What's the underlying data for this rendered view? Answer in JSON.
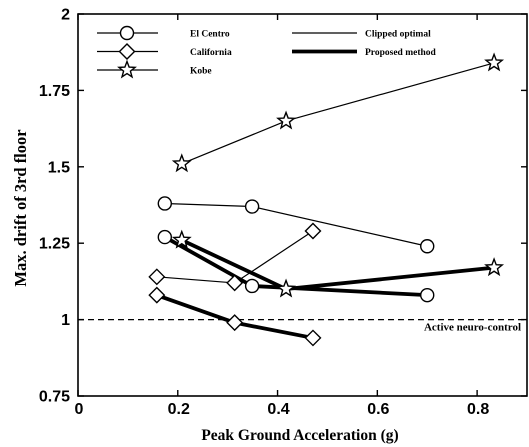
{
  "chart_data": {
    "type": "line",
    "xlabel": "Peak Ground Acceleration (g)",
    "ylabel": "Max. drift of 3rd floor",
    "xlim": [
      0,
      0.9
    ],
    "ylim": [
      0.75,
      2
    ],
    "xticks": [
      0,
      0.2,
      0.4,
      0.6,
      0.8
    ],
    "yticks": [
      0.75,
      1,
      1.25,
      1.5,
      1.75,
      2
    ],
    "grid": false,
    "legend": {
      "placement": "top-left",
      "marker_entries": [
        {
          "label": "El Centro",
          "marker": "circle"
        },
        {
          "label": "California",
          "marker": "diamond"
        },
        {
          "label": "Kobe",
          "marker": "star"
        }
      ],
      "line_entries": [
        {
          "label": "Clipped optimal",
          "line": "thin"
        },
        {
          "label": "Proposed method",
          "line": "thick"
        }
      ]
    },
    "reference_line": {
      "y": 1,
      "style": "dashed",
      "label": "Active neuro-control"
    },
    "series": [
      {
        "marker_entry": 0,
        "line_entry": 0,
        "x": [
          0.174,
          0.349,
          0.7
        ],
        "y": [
          1.38,
          1.37,
          1.24
        ]
      },
      {
        "marker_entry": 0,
        "line_entry": 1,
        "x": [
          0.174,
          0.349,
          0.7
        ],
        "y": [
          1.27,
          1.11,
          1.08
        ]
      },
      {
        "marker_entry": 1,
        "line_entry": 0,
        "x": [
          0.158,
          0.314,
          0.471
        ],
        "y": [
          1.14,
          1.12,
          1.29
        ]
      },
      {
        "marker_entry": 1,
        "line_entry": 1,
        "x": [
          0.158,
          0.314,
          0.471
        ],
        "y": [
          1.08,
          0.99,
          0.94
        ]
      },
      {
        "marker_entry": 2,
        "line_entry": 0,
        "x": [
          0.208,
          0.417,
          0.834
        ],
        "y": [
          1.51,
          1.65,
          1.84
        ]
      },
      {
        "marker_entry": 2,
        "line_entry": 1,
        "x": [
          0.208,
          0.417,
          0.834
        ],
        "y": [
          1.26,
          1.1,
          1.17
        ]
      }
    ]
  }
}
